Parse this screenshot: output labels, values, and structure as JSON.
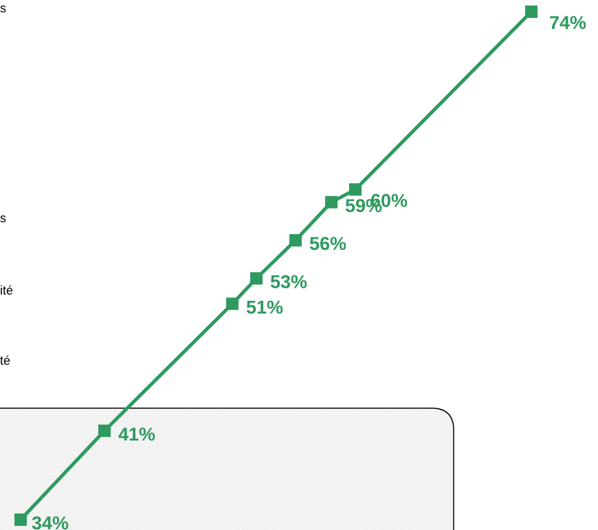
{
  "side_text": {
    "fragments": [
      "s",
      "s",
      "ité",
      "té"
    ]
  },
  "chart_data": {
    "type": "line",
    "title": "",
    "xlabel": "",
    "ylabel": "",
    "series": [
      {
        "values": [
          34,
          41,
          51,
          53,
          56,
          59,
          60,
          74
        ],
        "labels": [
          "34%",
          "41%",
          "51%",
          "53%",
          "56%",
          "59%",
          "60%",
          "74%"
        ]
      }
    ],
    "ylim": [
      34,
      74
    ],
    "grid": false,
    "legend": "none",
    "highlight_box": {
      "covers_points": [
        "34%",
        "41%"
      ]
    },
    "colors": {
      "line": "#2e9a5f",
      "marker": "#2e9a5f",
      "label": "#2e9a5f",
      "box_fill": "#f0f0f0",
      "box_border": "#000000"
    }
  }
}
